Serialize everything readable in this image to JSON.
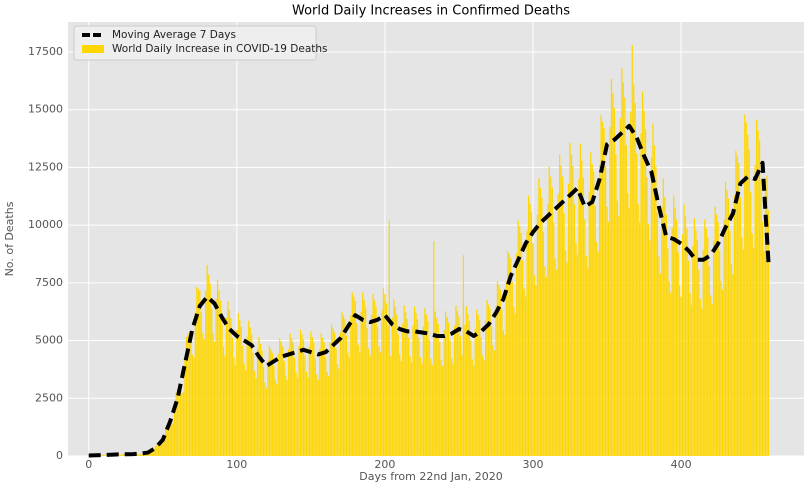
{
  "chart_data": {
    "type": "bar",
    "title": "World Daily Increases in Confirmed Deaths",
    "x_label": "Days from 22nd Jan, 2020",
    "y_label": "No. of Deaths",
    "xlim": [
      -14,
      483
    ],
    "ylim": [
      0,
      18800
    ],
    "xticks": [
      0,
      100,
      200,
      300,
      400
    ],
    "yticks": [
      0,
      2500,
      5000,
      7500,
      10000,
      12500,
      15000,
      17500
    ],
    "grid": true,
    "legend": "upper left",
    "series": [
      {
        "name": "Moving Average 7 Days",
        "type": "line",
        "color": "#000000",
        "x": [
          0,
          5,
          10,
          15,
          20,
          25,
          30,
          35,
          40,
          45,
          50,
          55,
          60,
          65,
          70,
          75,
          80,
          85,
          90,
          95,
          100,
          105,
          110,
          115,
          120,
          125,
          130,
          135,
          140,
          145,
          150,
          155,
          160,
          165,
          170,
          175,
          180,
          185,
          190,
          195,
          200,
          205,
          210,
          215,
          220,
          225,
          230,
          235,
          240,
          245,
          250,
          255,
          260,
          265,
          270,
          275,
          280,
          285,
          290,
          295,
          300,
          305,
          310,
          315,
          320,
          325,
          330,
          335,
          340,
          345,
          350,
          355,
          360,
          365,
          370,
          375,
          380,
          385,
          390,
          395,
          400,
          405,
          410,
          415,
          420,
          425,
          430,
          435,
          440,
          445,
          450,
          455,
          459
        ],
        "values": [
          20,
          30,
          40,
          55,
          70,
          75,
          80,
          100,
          150,
          350,
          700,
          1500,
          2500,
          4000,
          5500,
          6500,
          6900,
          6600,
          6000,
          5500,
          5200,
          5000,
          4800,
          4300,
          3900,
          4100,
          4300,
          4400,
          4500,
          4600,
          4500,
          4400,
          4500,
          4800,
          5100,
          5600,
          6100,
          5900,
          5800,
          5900,
          6100,
          5700,
          5500,
          5400,
          5400,
          5350,
          5300,
          5200,
          5200,
          5300,
          5500,
          5400,
          5200,
          5400,
          5700,
          6200,
          6800,
          7800,
          8500,
          9200,
          9700,
          10100,
          10400,
          10700,
          11000,
          11300,
          11600,
          10800,
          11000,
          12000,
          13500,
          13700,
          14000,
          14300,
          13800,
          13000,
          12300,
          10800,
          9500,
          9400,
          9200,
          8900,
          8500,
          8500,
          8700,
          9200,
          9900,
          10500,
          11800,
          12100,
          12000,
          12700,
          8400
        ]
      },
      {
        "name": "World Daily Increase in COVID-19 Deaths",
        "type": "bar",
        "color": "#ffd700",
        "x": [
          0,
          1,
          2,
          3,
          4,
          5,
          6,
          7,
          8,
          9,
          10,
          11,
          12,
          13,
          14,
          15,
          16,
          17,
          18,
          19,
          20,
          21,
          22,
          23,
          24,
          25,
          26,
          27,
          28,
          29,
          30,
          31,
          32,
          33,
          34,
          35,
          36,
          37,
          38,
          39,
          40,
          41,
          42,
          43,
          44,
          45,
          46,
          47,
          48,
          49,
          50,
          51,
          52,
          53,
          54,
          55,
          56,
          57,
          58,
          59,
          60,
          61,
          62,
          63,
          64,
          65,
          66,
          67,
          68,
          69,
          70,
          71,
          72,
          73,
          74,
          75,
          76,
          77,
          78,
          79,
          80,
          81,
          82,
          83,
          84,
          85,
          86,
          87,
          88,
          89,
          90,
          91,
          92,
          93,
          94,
          95,
          96,
          97,
          98,
          99,
          100,
          101,
          102,
          103,
          104,
          105,
          106,
          107,
          108,
          109,
          110,
          111,
          112,
          113,
          114,
          115,
          116,
          117,
          118,
          119,
          120,
          121,
          122,
          123,
          124,
          125,
          126,
          127,
          128,
          129,
          130,
          131,
          132,
          133,
          134,
          135,
          136,
          137,
          138,
          139,
          140,
          141,
          142,
          143,
          144,
          145,
          146,
          147,
          148,
          149,
          150,
          151,
          152,
          153,
          154,
          155,
          156,
          157,
          158,
          159,
          160,
          161,
          162,
          163,
          164,
          165,
          166,
          167,
          168,
          169,
          170,
          171,
          172,
          173,
          174,
          175,
          176,
          177,
          178,
          179,
          180,
          181,
          182,
          183,
          184,
          185,
          186,
          187,
          188,
          189,
          190,
          191,
          192,
          193,
          194,
          195,
          196,
          197,
          198,
          199,
          200,
          201,
          202,
          203,
          204,
          205,
          206,
          207,
          208,
          209,
          210,
          211,
          212,
          213,
          214,
          215,
          216,
          217,
          218,
          219,
          220,
          221,
          222,
          223,
          224,
          225,
          226,
          227,
          228,
          229,
          230,
          231,
          232,
          233,
          234,
          235,
          236,
          237,
          238,
          239,
          240,
          241,
          242,
          243,
          244,
          245,
          246,
          247,
          248,
          249,
          250,
          251,
          252,
          253,
          254,
          255,
          256,
          257,
          258,
          259,
          260,
          261,
          262,
          263,
          264,
          265,
          266,
          267,
          268,
          269,
          270,
          271,
          272,
          273,
          274,
          275,
          276,
          277,
          278,
          279,
          280,
          281,
          282,
          283,
          284,
          285,
          286,
          287,
          288,
          289,
          290,
          291,
          292,
          293,
          294,
          295,
          296,
          297,
          298,
          299,
          300,
          301,
          302,
          303,
          304,
          305,
          306,
          307,
          308,
          309,
          310,
          311,
          312,
          313,
          314,
          315,
          316,
          317,
          318,
          319,
          320,
          321,
          322,
          323,
          324,
          325,
          326,
          327,
          328,
          329,
          330,
          331,
          332,
          333,
          334,
          335,
          336,
          337,
          338,
          339,
          340,
          341,
          342,
          343,
          344,
          345,
          346,
          347,
          348,
          349,
          350,
          351,
          352,
          353,
          354,
          355,
          356,
          357,
          358,
          359,
          360,
          361,
          362,
          363,
          364,
          365,
          366,
          367,
          368,
          369,
          370,
          371,
          372,
          373,
          374,
          375,
          376,
          377,
          378,
          379,
          380,
          381,
          382,
          383,
          384,
          385,
          386,
          387,
          388,
          389,
          390,
          391,
          392,
          393,
          394,
          395,
          396,
          397,
          398,
          399,
          400,
          401,
          402,
          403,
          404,
          405,
          406,
          407,
          408,
          409,
          410,
          411,
          412,
          413,
          414,
          415,
          416,
          417,
          418,
          419,
          420,
          421,
          422,
          423,
          424,
          425,
          426,
          427,
          428,
          429,
          430,
          431,
          432,
          433,
          434,
          435,
          436,
          437,
          438,
          439,
          440,
          441,
          442,
          443,
          444,
          445,
          446,
          447,
          448,
          449,
          450,
          451,
          452,
          453,
          454,
          455,
          456,
          457,
          458,
          459
        ],
        "values": [
          16,
          15,
          21,
          24,
          23,
          33,
          29,
          24,
          23,
          32,
          48,
          46,
          44,
          38,
          32,
          41,
          58,
          66,
          63,
          61,
          67,
          56,
          53,
          74,
          84,
          86,
          83,
          71,
          60,
          56,
          84,
          96,
          92,
          88,
          76,
          80,
          75,
          105,
          120,
          115,
          165,
          181,
          184,
          203,
          326,
          420,
          483,
          539,
          532,
          504,
          525,
          903,
          1224,
          1357,
          1474,
          1425,
          1360,
          1425,
          2205,
          2760,
          2875,
          3080,
          2945,
          2720,
          2775,
          4200,
          5160,
          5290,
          5390,
          4940,
          4400,
          4275,
          6195,
          7320,
          7245,
          7150,
          6251,
          5328,
          5055,
          7161,
          8280,
          7866,
          7458,
          6384,
          5328,
          4950,
          6804,
          7632,
          7176,
          6732,
          5700,
          4720,
          4350,
          5985,
          6720,
          6325,
          5984,
          5111,
          4256,
          3945,
          5460,
          6192,
          5888,
          5588,
          4788,
          4000,
          3720,
          5166,
          5856,
          5566,
          5280,
          4465,
          3680,
          3375,
          4620,
          5160,
          4853,
          4554,
          3857,
          3184,
          2925,
          4137,
          4776,
          4623,
          4466,
          3895,
          3312,
          3135,
          4431,
          5112,
          4945,
          4752,
          4123,
          3488,
          3285,
          4620,
          5304,
          5106,
          4906,
          4256,
          3600,
          3390,
          4767,
          5472,
          5267,
          5060,
          4351,
          3648,
          3405,
          4746,
          5400,
          5152,
          4906,
          4218,
          3536,
          3300,
          4641,
          5328,
          5129,
          4928,
          4275,
          3648,
          3465,
          4914,
          5688,
          5520,
          5346,
          4674,
          3984,
          3780,
          5355,
          6240,
          6095,
          5940,
          5225,
          4480,
          4275,
          6090,
          7080,
          6900,
          6710,
          5757,
          4816,
          4485,
          6237,
          7080,
          6762,
          6446,
          5548,
          4656,
          4350,
          6111,
          7008,
          6739,
          6468,
          5605,
          4752,
          4485,
          6321,
          7272,
          7015,
          6622,
          5643,
          10200,
          4335,
          5985,
          6792,
          6463,
          6138,
          5263,
          4400,
          4110,
          5733,
          6528,
          6233,
          5940,
          5130,
          4320,
          4050,
          5670,
          6480,
          6199,
          5918,
          5102,
          4288,
          4013,
          5607,
          6396,
          6118,
          5841,
          5035,
          4224,
          3945,
          9300,
          6264,
          5980,
          5720,
          4940,
          4160,
          3900,
          5460,
          6264,
          6026,
          5786,
          5016,
          4240,
          4005,
          5649,
          6504,
          6279,
          6050,
          5206,
          4368,
          8700,
          5691,
          6480,
          6164,
          5852,
          5016,
          4192,
          3900,
          5502,
          6336,
          6118,
          5896,
          5130,
          4368,
          4140,
          5859,
          6768,
          6555,
          6380,
          5605,
          4800,
          4575,
          6510,
          7584,
          7406,
          7216,
          6346,
          5440,
          5250,
          7560,
          8880,
          8740,
          8580,
          7543,
          6464,
          6165,
          8778,
          10200,
          9936,
          9658,
          8474,
          7248,
          6900,
          9765,
          11280,
          10925,
          10560,
          9215,
          7824,
          7395,
          10437,
          12024,
          11615,
          11176,
          9709,
          8224,
          7755,
          10920,
          12552,
          12098,
          11638,
          10108,
          8560,
          8070,
          11361,
          13056,
          12581,
          12100,
          10507,
          8896,
          8385,
          11802,
          13560,
          13064,
          12562,
          10906,
          9232,
          8700,
          12012,
          13536,
          12788,
          12056,
          10260,
          8672,
          8160,
          11466,
          13152,
          12650,
          12320,
          10830,
          9280,
          8850,
          12600,
          14760,
          14490,
          14190,
          12540,
          10800,
          10155,
          14259,
          16344,
          15709,
          15070,
          13072,
          11056,
          10410,
          14637,
          16800,
          16169,
          15532,
          13471,
          11392,
          10725,
          14910,
          17800,
          16100,
          15290,
          13110,
          10912,
          10110,
          13986,
          15792,
          14950,
          14146,
          12084,
          10064,
          9330,
          12915,
          14400,
          13455,
          12540,
          10545,
          8640,
          7905,
          10794,
          12024,
          11224,
          10450,
          9006,
          7568,
          7080,
          9891,
          11280,
          10764,
          10252,
          8816,
          7392,
          6900,
          9597,
          10896,
          10373,
          9856,
          8455,
          7056,
          6555,
          9093,
          10296,
          9775,
          9350,
          8075,
          6800,
          6375,
          8925,
          10248,
          9867,
          9482,
          8227,
          6960,
          6600,
          9345,
          10800,
          10465,
          10120,
          8873,
          7584,
          7215,
          10248,
          11880,
          11523,
          11154,
          9747,
          8304,
          7875,
          11298,
          13224,
          12972,
          12694,
          11210,
          9488,
          8940,
          14800,
          14448,
          13915,
          13288,
          11457,
          9632,
          9015,
          12600,
          14568,
          14122,
          13662,
          11932,
          10160,
          8880,
          11529,
          12144,
          10649
        ]
      }
    ]
  }
}
